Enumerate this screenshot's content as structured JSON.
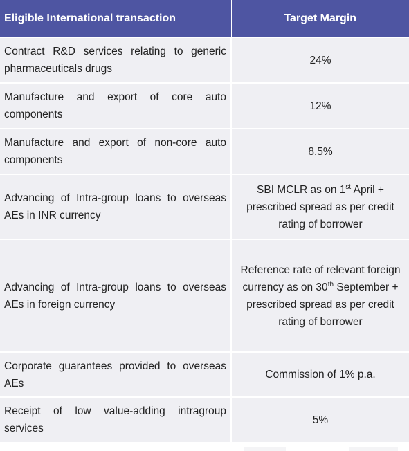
{
  "table": {
    "headers": {
      "transaction": "Eligible International transaction",
      "margin": "Target Margin"
    },
    "rows": [
      {
        "transaction": "Contract R&D services relating to generic pharmaceuticals drugs",
        "margin": "24%"
      },
      {
        "transaction": "Manufacture and export of core auto components",
        "margin": "12%"
      },
      {
        "transaction": "Manufacture and export of non-core auto components",
        "margin": "8.5%"
      },
      {
        "transaction": "Advancing of Intra-group loans to overseas AEs in INR currency",
        "margin_pre": "SBI MCLR as on 1",
        "margin_sup": "st",
        "margin_post": " April + prescribed spread as per credit rating of borrower"
      },
      {
        "transaction": "Advancing of Intra-group loans to overseas AEs in foreign currency",
        "margin_pre": "Reference rate of relevant foreign currency as on 30",
        "margin_sup": "th",
        "margin_post": " September + prescribed spread as per credit rating of borrower"
      },
      {
        "transaction": "Corporate guarantees provided to overseas AEs",
        "margin": "Commission of 1% p.a."
      },
      {
        "transaction": "Receipt of low value-adding intragroup services",
        "margin": "5%"
      }
    ]
  },
  "colors": {
    "header_bg": "#4e55a2",
    "header_text": "#ffffff",
    "cell_bg": "#efeff3",
    "text": "#222222"
  }
}
